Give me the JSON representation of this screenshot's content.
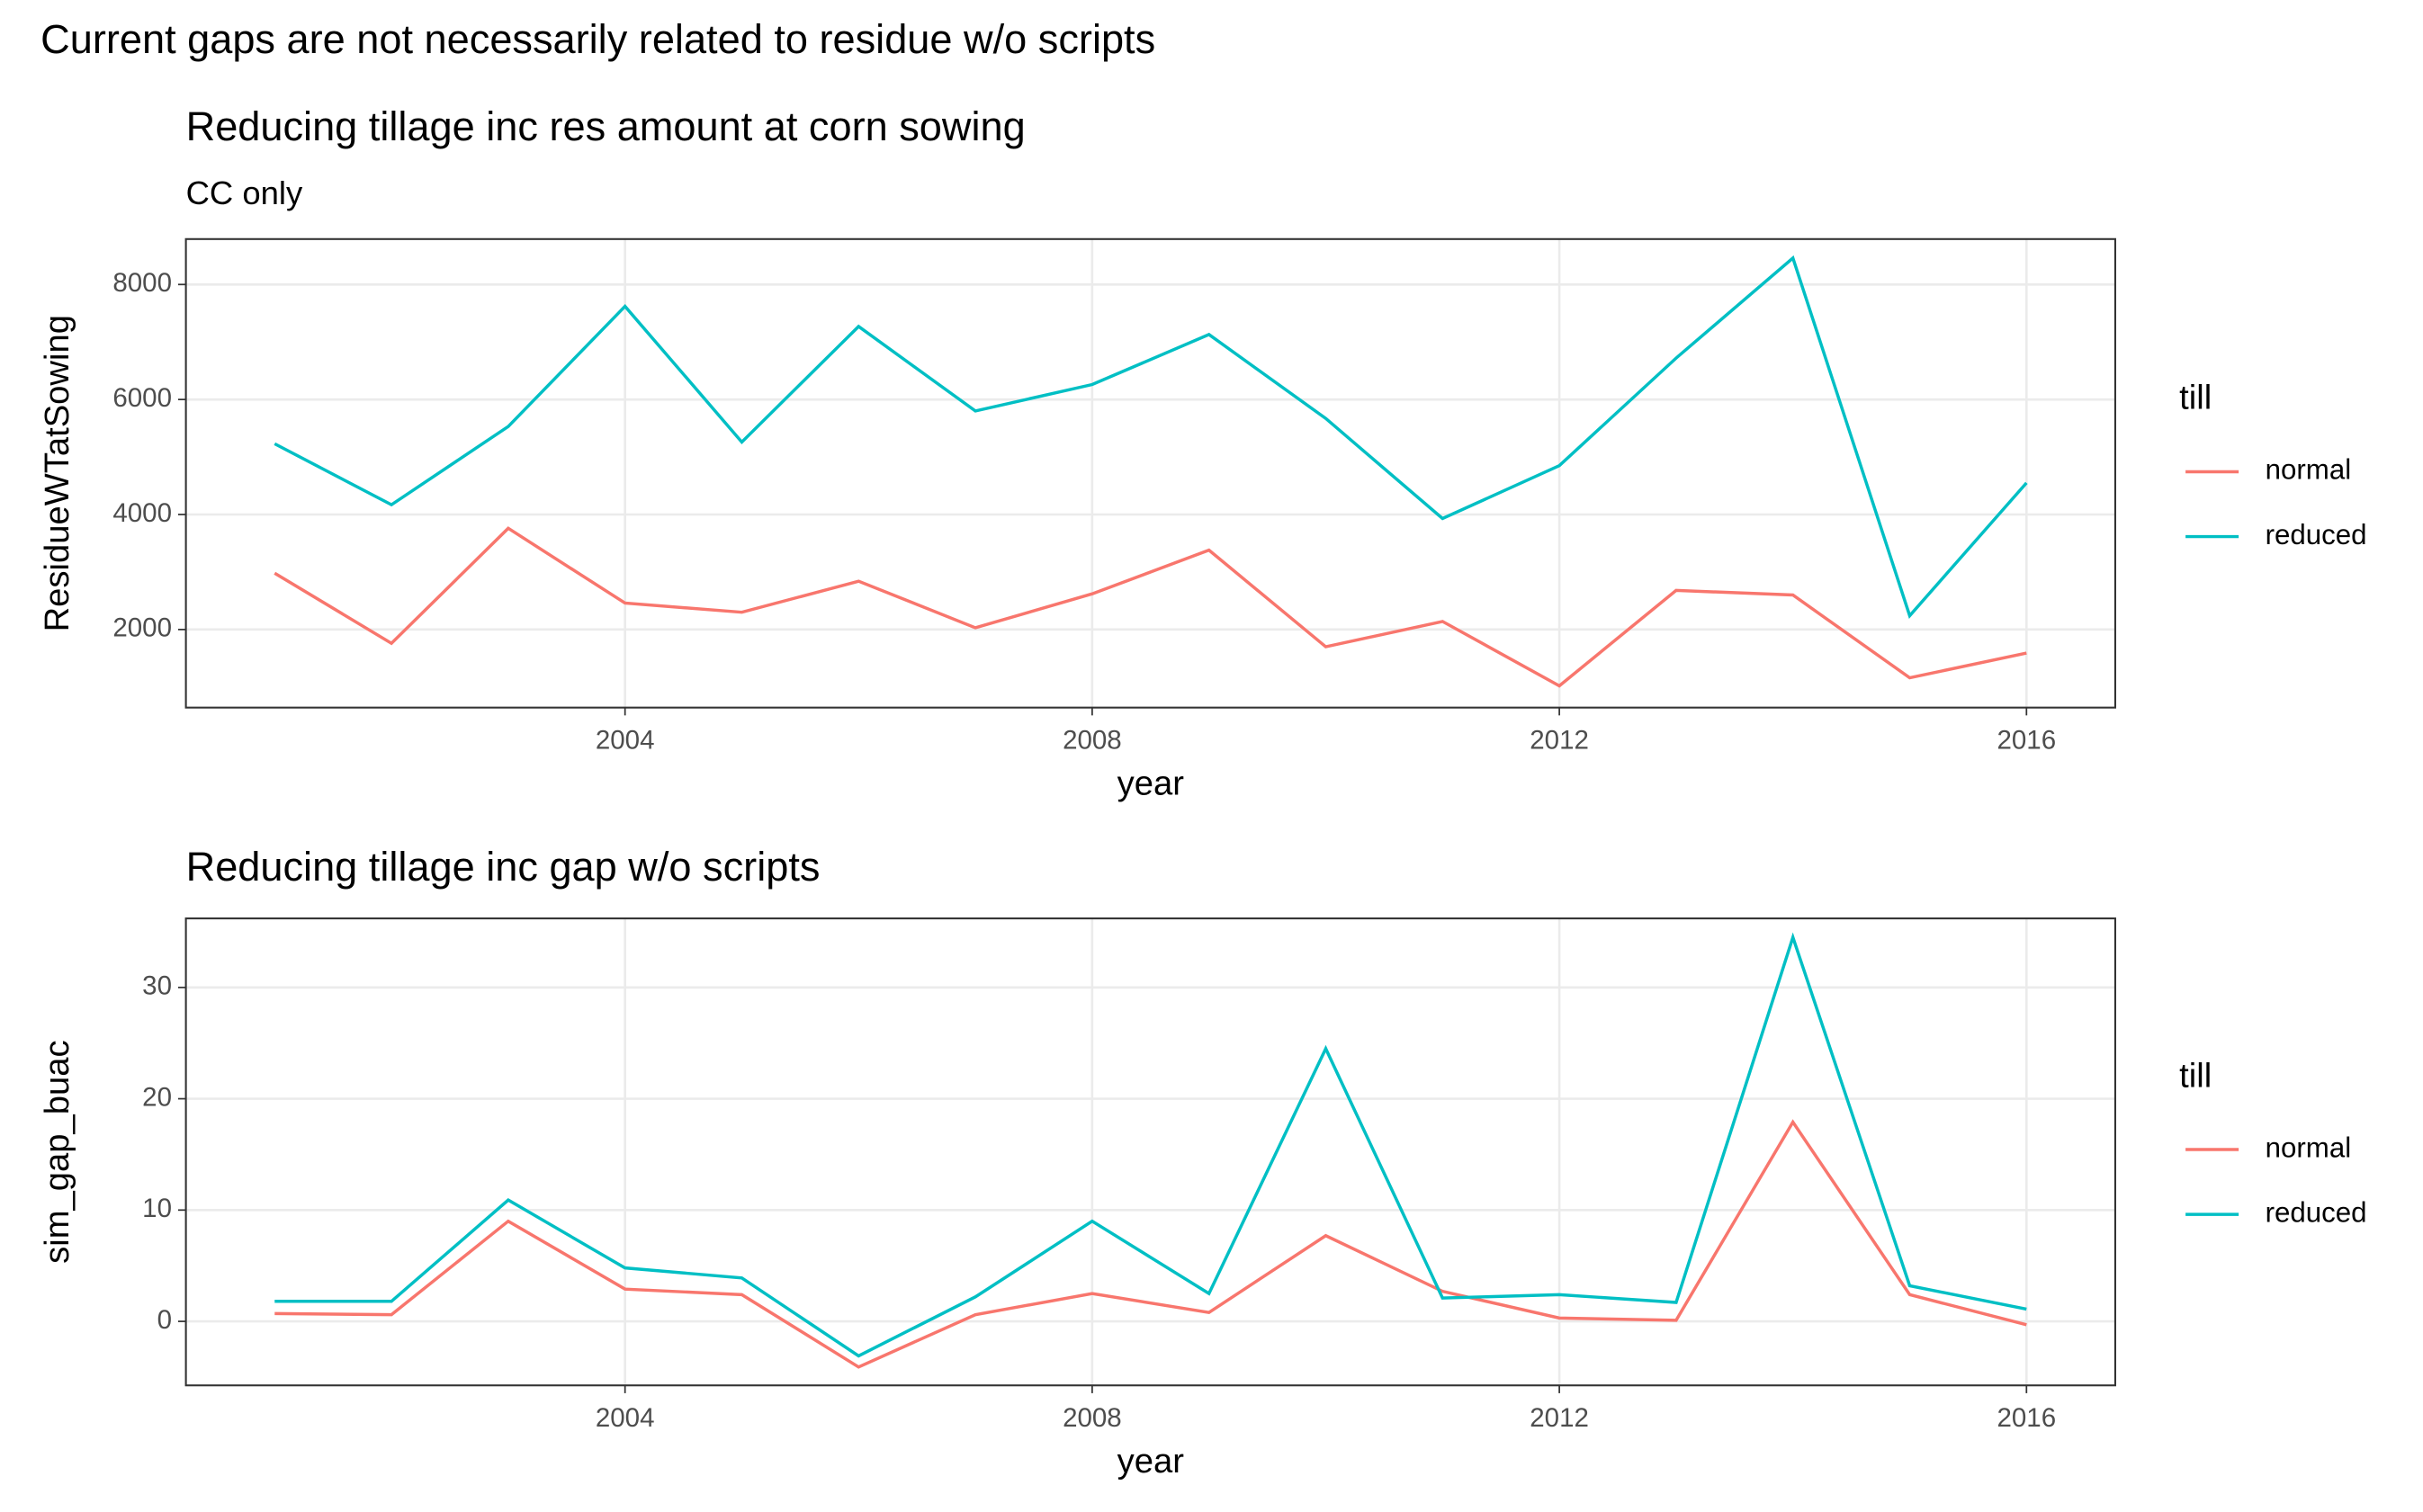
{
  "title": "Current gaps are not necessarily related to residue w/o scripts",
  "chart_data": [
    {
      "type": "line",
      "title": "Reducing tillage inc res amount at corn sowing",
      "subtitle": "CC only",
      "xlabel": "year",
      "ylabel": "ResidueWTatSowing",
      "legend_title": "till",
      "legend": "right",
      "grid": true,
      "x": [
        2001,
        2002,
        2003,
        2004,
        2005,
        2006,
        2007,
        2008,
        2009,
        2010,
        2011,
        2012,
        2013,
        2014,
        2015,
        2016
      ],
      "series": [
        {
          "name": "normal",
          "color": "#f8766d",
          "values": [
            2980,
            1760,
            3760,
            2460,
            2300,
            2840,
            2030,
            2620,
            3380,
            1700,
            2140,
            1020,
            2680,
            2600,
            1160,
            1590
          ]
        },
        {
          "name": "reduced",
          "color": "#00bfc4",
          "values": [
            5230,
            4170,
            5530,
            7620,
            5260,
            7270,
            5800,
            6260,
            7130,
            5670,
            3930,
            4850,
            6720,
            8460,
            2240,
            4550
          ]
        }
      ],
      "xlim": [
        2000.24,
        2016.76
      ],
      "xticks": [
        2004,
        2008,
        2012,
        2016
      ],
      "ylim": [
        642,
        8790
      ],
      "yticks": [
        2000,
        4000,
        6000,
        8000
      ]
    },
    {
      "type": "line",
      "title": "Reducing tillage inc gap w/o scripts",
      "xlabel": "year",
      "ylabel": "sim_gap_buac",
      "legend_title": "till",
      "legend": "right",
      "grid": true,
      "x": [
        2001,
        2002,
        2003,
        2004,
        2005,
        2006,
        2007,
        2008,
        2009,
        2010,
        2011,
        2012,
        2013,
        2014,
        2015,
        2016
      ],
      "series": [
        {
          "name": "normal",
          "color": "#f8766d",
          "values": [
            0.7,
            0.6,
            9.0,
            2.9,
            2.4,
            -4.1,
            0.6,
            2.5,
            0.8,
            7.7,
            2.7,
            0.3,
            0.1,
            17.9,
            2.4,
            -0.3
          ]
        },
        {
          "name": "reduced",
          "color": "#00bfc4",
          "values": [
            1.8,
            1.8,
            10.9,
            4.8,
            3.9,
            -3.1,
            2.2,
            9.0,
            2.5,
            24.5,
            2.1,
            2.4,
            1.7,
            34.5,
            3.2,
            1.1
          ]
        }
      ],
      "xlim": [
        2000.24,
        2016.76
      ],
      "xticks": [
        2004,
        2008,
        2012,
        2016
      ],
      "ylim": [
        -5.75,
        36.2
      ],
      "yticks": [
        0,
        10,
        20,
        30
      ]
    }
  ]
}
